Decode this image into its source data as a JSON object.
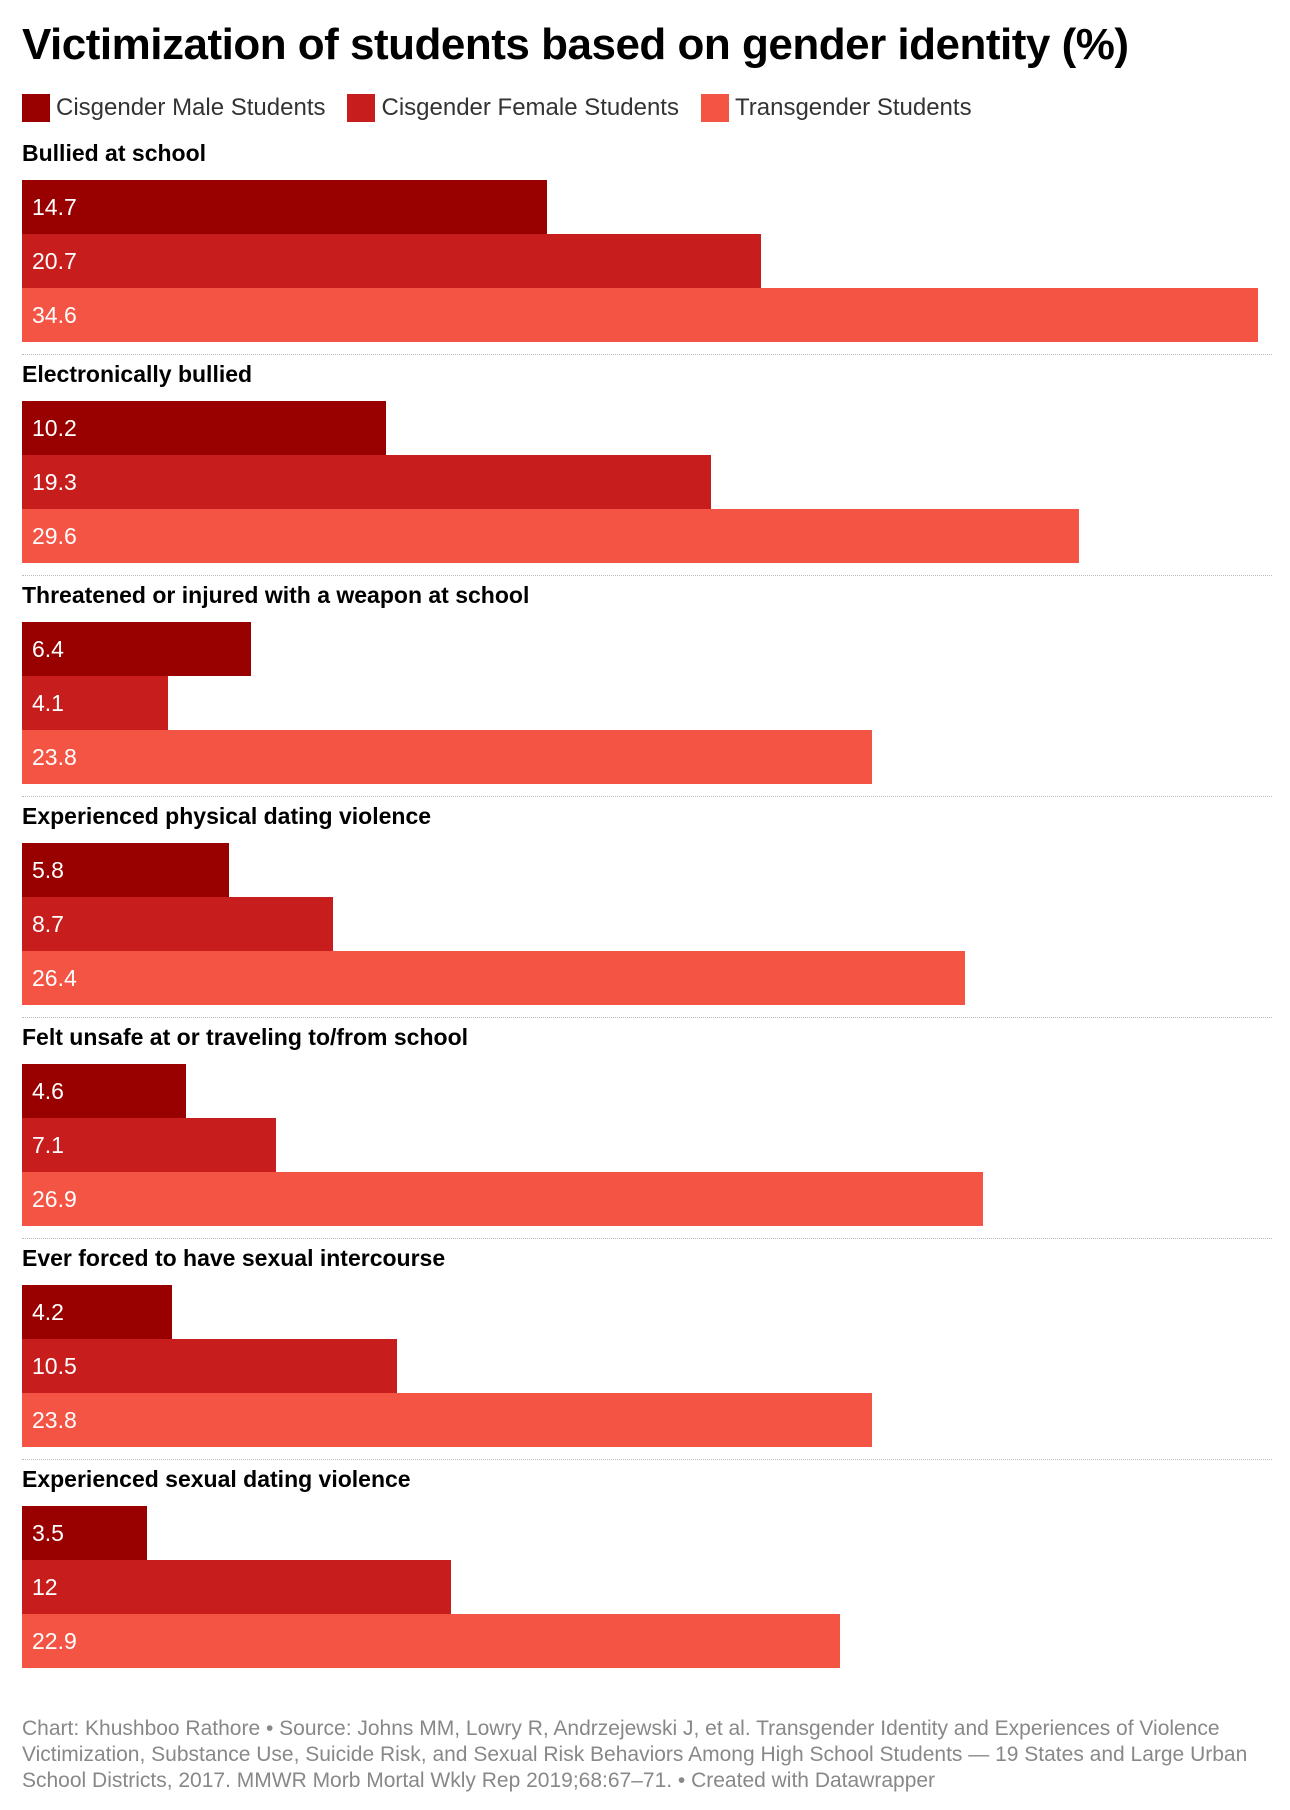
{
  "title": "Victimization of students based on gender identity (%)",
  "footer": "Chart: Khushboo Rathore • Source: Johns MM, Lowry R, Andrzejewski J, et al. Transgender Identity and Experiences of Violence Victimization, Substance Use, Suicide Risk, and Sexual Risk Behaviors Among High School Students — 19 States and Large Urban School Districts, 2017. MMWR Morb Mortal Wkly Rep 2019;68:67–71. • Created with Datawrapper",
  "colors": {
    "male": "#990000",
    "female": "#c81d1d",
    "transgender": "#f45444"
  },
  "chart_data": {
    "type": "bar",
    "orientation": "horizontal",
    "title": "Victimization of students based on gender identity (%)",
    "legend_position": "top-left",
    "xlim": [
      0,
      34.6
    ],
    "categories": [
      "Bullied at school",
      "Electronically bullied",
      "Threatened or injured with a weapon at school",
      "Experienced physical dating violence",
      "Felt unsafe at or traveling to/from school",
      "Ever forced to have sexual intercourse",
      "Experienced sexual dating violence"
    ],
    "series": [
      {
        "name": "Cisgender Male Students",
        "values": [
          14.7,
          10.2,
          6.4,
          5.8,
          4.6,
          4.2,
          3.5
        ]
      },
      {
        "name": "Cisgender Female Students",
        "values": [
          20.7,
          19.3,
          4.1,
          8.7,
          7.1,
          10.5,
          12
        ]
      },
      {
        "name": "Transgender Students",
        "values": [
          34.6,
          29.6,
          23.8,
          26.4,
          26.9,
          23.8,
          22.9
        ]
      }
    ]
  }
}
